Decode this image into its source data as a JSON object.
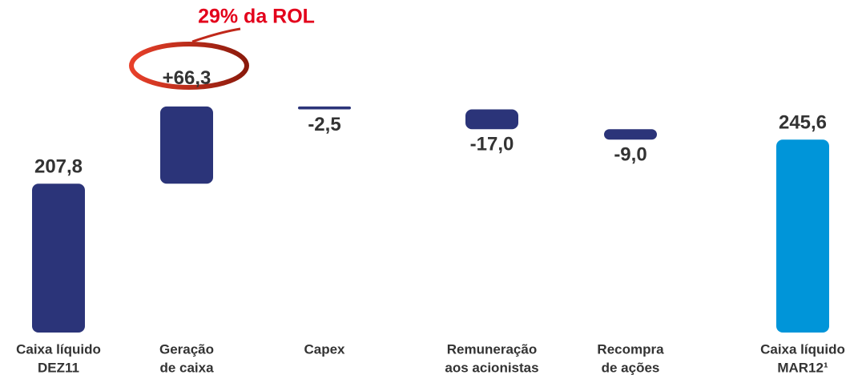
{
  "chart_data": {
    "type": "waterfall",
    "annotation": "29% da ROL",
    "categories": [
      [
        "Caixa líquido",
        "DEZ11"
      ],
      [
        "Geração",
        "de caixa"
      ],
      [
        "Capex"
      ],
      [
        "Remuneração",
        "aos acionistas"
      ],
      [
        "Recompra",
        "de ações"
      ],
      [
        "Caixa líquido",
        "MAR12¹"
      ]
    ],
    "values": [
      207.8,
      66.3,
      -2.5,
      -17.0,
      -9.0,
      245.6
    ],
    "value_labels": [
      "207,8",
      "+66,3",
      "-2,5",
      "-17,0",
      "-9,0",
      "245,6"
    ],
    "measure": [
      "absolute",
      "relative",
      "relative",
      "relative",
      "relative",
      "total"
    ],
    "colors": [
      "#2b3479",
      "#2b3479",
      "#2b3479",
      "#2b3479",
      "#2b3479",
      "#0095d9"
    ],
    "ylim": [
      80,
      285
    ]
  }
}
